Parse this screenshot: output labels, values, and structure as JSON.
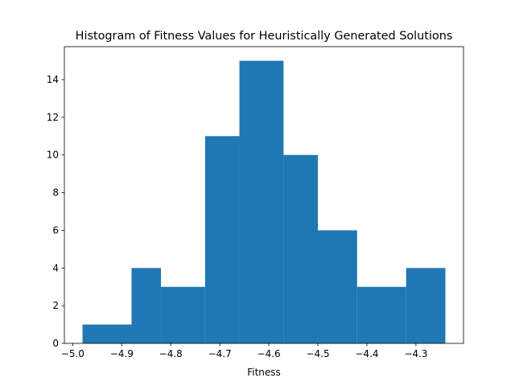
{
  "chart_data": {
    "type": "bar",
    "title": "Histogram of Fitness Values for Heuristically Generated Solutions",
    "xlabel": "Fitness",
    "ylabel": "",
    "bins": [
      {
        "x0": -4.98,
        "x1": -4.88,
        "count": 1
      },
      {
        "x0": -4.88,
        "x1": -4.82,
        "count": 4
      },
      {
        "x0": -4.82,
        "x1": -4.73,
        "count": 3
      },
      {
        "x0": -4.73,
        "x1": -4.66,
        "count": 11
      },
      {
        "x0": -4.66,
        "x1": -4.57,
        "count": 15
      },
      {
        "x0": -4.57,
        "x1": -4.5,
        "count": 10
      },
      {
        "x0": -4.5,
        "x1": -4.42,
        "count": 6
      },
      {
        "x0": -4.42,
        "x1": -4.32,
        "count": 3
      },
      {
        "x0": -4.32,
        "x1": -4.24,
        "count": 4
      }
    ],
    "xlim": [
      -5.017,
      -4.203
    ],
    "ylim": [
      0,
      15.75
    ],
    "xticks": [
      -5.0,
      -4.9,
      -4.8,
      -4.7,
      -4.6,
      -4.5,
      -4.4,
      -4.3
    ],
    "xtick_labels": [
      "−5.0",
      "−4.9",
      "−4.8",
      "−4.7",
      "−4.6",
      "−4.5",
      "−4.4",
      "−4.3"
    ],
    "yticks": [
      0,
      2,
      4,
      6,
      8,
      10,
      12,
      14
    ],
    "ytick_labels": [
      "0",
      "2",
      "4",
      "6",
      "8",
      "10",
      "12",
      "14"
    ],
    "bar_color": "#1f77b4",
    "grid": false,
    "legend": false
  }
}
